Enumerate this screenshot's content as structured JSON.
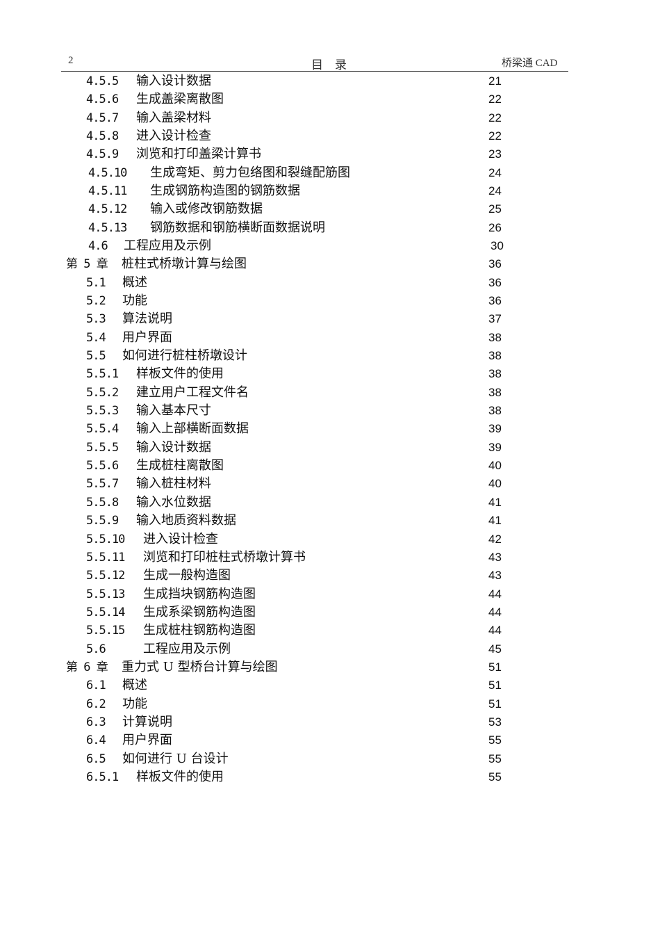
{
  "header": {
    "page_number": "2",
    "title": "目　录",
    "book": "桥梁通 CAD"
  },
  "entries": [
    {
      "num": "4.5.5",
      "title": "输入设计数据",
      "page": "21"
    },
    {
      "num": "4.5.6",
      "title": "生成盖梁离散图",
      "page": "22"
    },
    {
      "num": "4.5.7",
      "title": "输入盖梁材料",
      "page": "22"
    },
    {
      "num": "4.5.8",
      "title": "进入设计检查",
      "page": "22"
    },
    {
      "num": "4.5.9",
      "title": "浏览和打印盖梁计算书",
      "page": "23"
    },
    {
      "num": "4.5.10",
      "title": "生成弯矩、剪力包络图和裂缝配筋图",
      "page": "24"
    },
    {
      "num": "4.5.11",
      "title": "生成钢筋构造图的钢筋数据",
      "page": "24"
    },
    {
      "num": "4.5.12",
      "title": "输入或修改钢筋数据",
      "page": "25"
    },
    {
      "num": "4.5.13",
      "title": "钢筋数据和钢筋横断面数据说明",
      "page": "26"
    },
    {
      "num": "4.6",
      "title": "工程应用及示例",
      "page": "30"
    },
    {
      "num": "第 5 章",
      "title": "桩柱式桥墩计算与绘图",
      "page": "36"
    },
    {
      "num": "5.1",
      "title": "概述",
      "page": "36"
    },
    {
      "num": "5.2",
      "title": "功能",
      "page": "36"
    },
    {
      "num": "5.3",
      "title": "算法说明",
      "page": "37"
    },
    {
      "num": "5.4",
      "title": "用户界面",
      "page": "38"
    },
    {
      "num": "5.5",
      "title": "如何进行桩柱桥墩设计",
      "page": "38"
    },
    {
      "num": "5.5.1",
      "title": "样板文件的使用",
      "page": "38"
    },
    {
      "num": "5.5.2",
      "title": "建立用户工程文件名",
      "page": "38"
    },
    {
      "num": "5.5.3",
      "title": "输入基本尺寸",
      "page": "38"
    },
    {
      "num": "5.5.4",
      "title": "输入上部横断面数据",
      "page": "39"
    },
    {
      "num": "5.5.5",
      "title": "输入设计数据",
      "page": "39"
    },
    {
      "num": "5.5.6",
      "title": "生成桩柱离散图",
      "page": "40"
    },
    {
      "num": "5.5.7",
      "title": "输入桩柱材料",
      "page": "40"
    },
    {
      "num": "5.5.8",
      "title": "输入水位数据",
      "page": "41"
    },
    {
      "num": "5.5.9",
      "title": "输入地质资料数据",
      "page": "41"
    },
    {
      "num": "5.5.10",
      "title": "进入设计检查",
      "page": "42"
    },
    {
      "num": "5.5.11",
      "title": "浏览和打印桩柱式桥墩计算书",
      "page": "43"
    },
    {
      "num": "5.5.12",
      "title": "生成一般构造图",
      "page": "43"
    },
    {
      "num": "5.5.13",
      "title": "生成挡块钢筋构造图",
      "page": "44"
    },
    {
      "num": "5.5.14",
      "title": "生成系梁钢筋构造图",
      "page": "44"
    },
    {
      "num": "5.5.15",
      "title": "生成桩柱钢筋构造图",
      "page": "44"
    },
    {
      "num": "5.6",
      "title": "工程应用及示例",
      "page": "45"
    },
    {
      "num": "第 6 章",
      "title": "重力式 U 型桥台计算与绘图",
      "page": "51"
    },
    {
      "num": "6.1",
      "title": "概述",
      "page": "51"
    },
    {
      "num": "6.2",
      "title": "功能",
      "page": "51"
    },
    {
      "num": "6.3",
      "title": "计算说明",
      "page": "53"
    },
    {
      "num": "6.4",
      "title": "用户界面",
      "page": "55"
    },
    {
      "num": "6.5",
      "title": "如何进行 U 台设计",
      "page": "55"
    },
    {
      "num": "6.5.1",
      "title": "样板文件的使用",
      "page": "55"
    }
  ]
}
